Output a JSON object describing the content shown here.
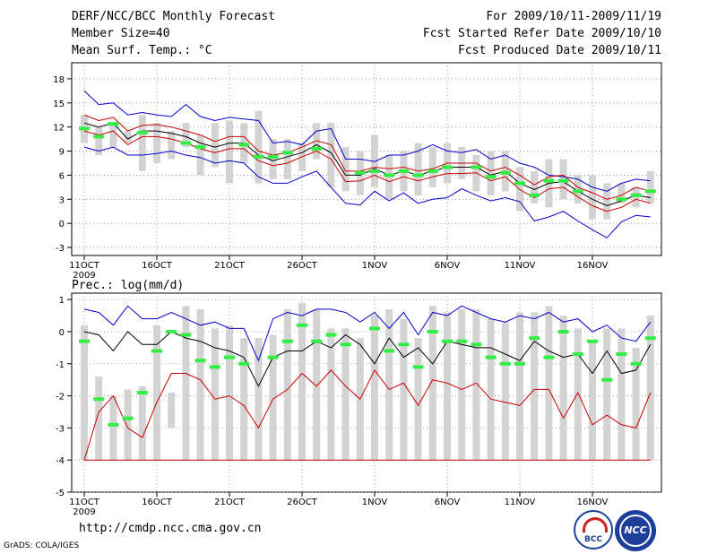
{
  "header": {
    "title": "DERF/NCC/BCC Monthly Forecast",
    "member_size": "Member Size=40",
    "variable": "Mean Surf. Temp.: °C",
    "period": "For 2009/10/11-2009/11/19",
    "start_date": "Fcst Started Refer Date 2009/10/10",
    "produced_date": "Fcst Produced Date 2009/10/11"
  },
  "footer": {
    "url": "http://cmdp.ncc.cma.gov.cn",
    "grads": "GrADS: COLA/IGES",
    "logo_bcc": "BCC",
    "logo_ncc": "NCC"
  },
  "colors": {
    "upper": "#0000cc",
    "mean": "#000000",
    "lower": "#cc0000",
    "box": "#d3d3d3",
    "obs": "#33ee44"
  },
  "chart_data": [
    {
      "type": "box-line",
      "title": "Mean Surf. Temp.: °C",
      "ylim": [
        -4,
        20
      ],
      "yticks": [
        -3,
        0,
        3,
        6,
        9,
        12,
        15,
        18
      ],
      "xlabels": [
        "11OCT",
        "16OCT",
        "21OCT",
        "26OCT",
        "1NOV",
        "6NOV",
        "11NOV",
        "16NOV"
      ],
      "xlabel_days": [
        0,
        5,
        10,
        15,
        20,
        25,
        30,
        35
      ],
      "year_label": "2009",
      "series": [
        {
          "name": "upper",
          "values": [
            16.5,
            14.8,
            15.0,
            13.5,
            13.8,
            13.5,
            13.3,
            14.8,
            13.3,
            12.8,
            13.2,
            13.0,
            12.8,
            10.0,
            10.2,
            9.8,
            11.5,
            11.8,
            8.0,
            8.0,
            7.7,
            8.5,
            8.5,
            9.0,
            9.8,
            9.0,
            8.8,
            9.2,
            8.0,
            8.5,
            7.5,
            7.0,
            6.0,
            5.8,
            5.5,
            4.5,
            4.0,
            5.0,
            5.5,
            5.3
          ]
        },
        {
          "name": "upper_sd",
          "values": [
            13.5,
            12.8,
            13.2,
            11.5,
            12.2,
            12.3,
            12.0,
            11.5,
            11.0,
            10.2,
            10.8,
            10.8,
            9.0,
            8.5,
            8.8,
            9.5,
            10.3,
            9.8,
            6.5,
            6.5,
            7.0,
            6.8,
            7.0,
            6.5,
            6.8,
            7.5,
            7.5,
            7.5,
            6.5,
            7.0,
            6.0,
            4.8,
            5.8,
            6.0,
            4.5,
            3.8,
            3.0,
            3.5,
            4.5,
            4.0
          ]
        },
        {
          "name": "mean",
          "values": [
            12.5,
            12.0,
            12.5,
            10.5,
            11.5,
            11.5,
            11.2,
            10.8,
            10.0,
            9.5,
            10.0,
            10.0,
            8.5,
            7.8,
            8.3,
            8.8,
            9.8,
            8.8,
            6.0,
            6.0,
            6.8,
            6.0,
            6.5,
            6.0,
            6.5,
            7.0,
            7.0,
            7.0,
            6.0,
            6.5,
            5.0,
            4.2,
            5.0,
            5.2,
            4.0,
            3.0,
            2.2,
            2.8,
            3.5,
            3.2
          ]
        },
        {
          "name": "lower_sd",
          "values": [
            11.5,
            11.0,
            11.5,
            9.8,
            10.8,
            10.8,
            10.5,
            10.0,
            9.3,
            8.8,
            9.3,
            9.3,
            7.8,
            7.2,
            7.5,
            8.3,
            9.0,
            8.0,
            5.2,
            5.3,
            6.0,
            5.2,
            5.8,
            5.3,
            5.8,
            6.2,
            6.2,
            6.3,
            5.3,
            5.8,
            4.2,
            3.2,
            4.3,
            4.5,
            3.3,
            2.2,
            1.5,
            2.0,
            3.0,
            2.5
          ]
        },
        {
          "name": "lower",
          "values": [
            9.5,
            9.0,
            9.5,
            8.5,
            8.5,
            8.7,
            9.0,
            8.5,
            8.2,
            7.5,
            7.8,
            7.5,
            5.8,
            5.0,
            5.0,
            5.8,
            6.5,
            4.5,
            2.5,
            2.3,
            4.0,
            2.8,
            3.8,
            2.5,
            3.0,
            3.2,
            4.3,
            3.5,
            2.8,
            3.2,
            2.7,
            0.3,
            0.8,
            1.5,
            0.3,
            -0.8,
            -1.8,
            0.2,
            1.0,
            0.8
          ]
        },
        {
          "name": "box_high",
          "values": [
            13.5,
            12.0,
            12.5,
            11.5,
            13.5,
            12.5,
            11.5,
            12.5,
            11.0,
            12.5,
            12.8,
            12.5,
            14.0,
            10.5,
            10.5,
            10.0,
            12.5,
            12.5,
            9.5,
            9.0,
            11.0,
            8.5,
            9.0,
            10.0,
            9.5,
            10.0,
            9.5,
            8.5,
            9.0,
            9.0,
            7.0,
            6.5,
            8.0,
            8.0,
            6.0,
            6.0,
            5.0,
            5.0,
            4.5,
            6.5
          ]
        },
        {
          "name": "box_low",
          "values": [
            10.0,
            8.5,
            9.5,
            10.0,
            6.5,
            7.5,
            8.0,
            9.5,
            6.0,
            7.0,
            5.0,
            7.5,
            5.0,
            5.5,
            5.5,
            6.5,
            8.0,
            4.5,
            4.0,
            3.5,
            4.5,
            3.0,
            4.0,
            3.5,
            4.5,
            5.0,
            5.5,
            4.0,
            3.5,
            4.0,
            1.5,
            2.5,
            2.0,
            3.0,
            2.5,
            0.5,
            0.5,
            2.5,
            2.0,
            2.5
          ]
        },
        {
          "name": "observed",
          "values": [
            11.8,
            10.8,
            12.4,
            null,
            11.3,
            null,
            null,
            10.0,
            9.5,
            null,
            null,
            9.8,
            8.3,
            8.3,
            8.8,
            null,
            9.3,
            null,
            null,
            6.3,
            6.5,
            6.0,
            6.5,
            6.0,
            6.5,
            7.0,
            null,
            7.0,
            5.8,
            6.3,
            5.0,
            3.5,
            5.3,
            5.3,
            4.0,
            null,
            null,
            3.0,
            3.5,
            4.0
          ]
        }
      ]
    },
    {
      "type": "box-line",
      "title": "Prec.: log(mm/d)",
      "ylim": [
        -5,
        1.2
      ],
      "yticks": [
        -5,
        -4,
        -3,
        -2,
        -1,
        0,
        1
      ],
      "xlabels": [
        "11OCT",
        "16OCT",
        "21OCT",
        "26OCT",
        "1NOV",
        "6NOV",
        "11NOV",
        "16NOV"
      ],
      "xlabel_days": [
        0,
        5,
        10,
        15,
        20,
        25,
        30,
        35
      ],
      "year_label": "2009",
      "series": [
        {
          "name": "upper",
          "values": [
            0.7,
            0.6,
            0.2,
            0.8,
            0.4,
            0.4,
            0.6,
            0.4,
            0.2,
            0.3,
            0.1,
            0.1,
            -0.9,
            0.4,
            0.6,
            0.5,
            0.7,
            0.7,
            0.6,
            0.3,
            0.6,
            0.1,
            0.6,
            -0.1,
            0.6,
            0.5,
            0.8,
            0.6,
            0.4,
            0.3,
            0.5,
            0.4,
            0.6,
            0.3,
            0.4,
            0.0,
            0.2,
            -0.2,
            -0.3,
            0.3
          ]
        },
        {
          "name": "mean",
          "values": [
            0.0,
            -0.1,
            -0.6,
            0.0,
            -0.4,
            -0.4,
            0.0,
            -0.2,
            -0.3,
            -0.5,
            -0.6,
            -0.8,
            -1.7,
            -0.8,
            -0.6,
            -0.6,
            -0.3,
            -0.5,
            -0.1,
            -0.4,
            -1.0,
            -0.2,
            -0.8,
            -0.5,
            -1.0,
            -0.3,
            -0.4,
            -0.5,
            -0.5,
            -0.7,
            -0.9,
            -0.3,
            -0.6,
            -0.8,
            -0.7,
            -1.3,
            -0.6,
            -1.3,
            -1.2,
            -0.4
          ]
        },
        {
          "name": "lower",
          "values": [
            -4.0,
            -2.5,
            -2.0,
            -3.0,
            -3.3,
            -2.2,
            -1.3,
            -1.3,
            -1.5,
            -2.1,
            -2.0,
            -2.3,
            -3.0,
            -2.1,
            -1.8,
            -1.3,
            -1.7,
            -1.2,
            -1.7,
            -2.1,
            -1.2,
            -1.8,
            -1.6,
            -2.3,
            -1.5,
            -1.6,
            -1.8,
            -1.6,
            -2.1,
            -2.2,
            -2.3,
            -1.8,
            -1.8,
            -2.7,
            -1.9,
            -2.9,
            -2.6,
            -2.9,
            -3.0,
            -1.9
          ]
        },
        {
          "name": "floor",
          "values": [
            -4.0,
            -4.0,
            -4.0,
            -4.0,
            -4.0,
            -4.0,
            -4.0,
            -4.0,
            -4.0,
            -4.0,
            -4.0,
            -4.0,
            -4.0,
            -4.0,
            -4.0,
            -4.0,
            -4.0,
            -4.0,
            -4.0,
            -4.0,
            -4.0,
            -4.0,
            -4.0,
            -4.0,
            -4.0,
            -4.0,
            -4.0,
            -4.0,
            -4.0,
            -4.0,
            -4.0,
            -4.0,
            -4.0,
            -4.0,
            -4.0,
            -4.0,
            -4.0,
            -4.0,
            -4.0,
            -4.0
          ]
        },
        {
          "name": "box_high",
          "values": [
            0.2,
            -1.4,
            -2.0,
            -1.8,
            -1.7,
            0.2,
            -1.9,
            0.8,
            0.7,
            0.1,
            0.2,
            -0.2,
            -0.2,
            -0.1,
            0.7,
            0.9,
            0.7,
            0.1,
            0.1,
            -0.2,
            0.5,
            0.7,
            0.4,
            -0.2,
            0.8,
            0.6,
            0.7,
            0.7,
            0.4,
            0.3,
            0.6,
            0.6,
            0.8,
            0.5,
            0.1,
            -0.3,
            0.1,
            0.1,
            -0.5,
            0.5
          ]
        },
        {
          "name": "box_low",
          "values": [
            -4.0,
            -4.0,
            -4.0,
            -4.0,
            -4.0,
            -4.0,
            -3.0,
            -4.0,
            -4.0,
            -4.0,
            -4.0,
            -4.0,
            -4.0,
            -4.0,
            -4.0,
            -4.0,
            -4.0,
            -4.0,
            -4.0,
            -4.0,
            -4.0,
            -4.0,
            -4.0,
            -4.0,
            -4.0,
            -4.0,
            -4.0,
            -4.0,
            -4.0,
            -4.0,
            -4.0,
            -4.0,
            -4.0,
            -4.0,
            -4.0,
            -4.0,
            -4.0,
            -4.0,
            -4.0,
            -4.0
          ]
        },
        {
          "name": "observed",
          "values": [
            -0.3,
            -2.1,
            -2.9,
            -2.7,
            -1.9,
            -0.6,
            0.0,
            -0.1,
            -0.9,
            -1.1,
            -0.8,
            -1.0,
            null,
            -0.8,
            -0.3,
            0.2,
            -0.3,
            -0.1,
            -0.4,
            null,
            0.1,
            -0.6,
            -0.4,
            -1.1,
            0.0,
            -0.3,
            -0.3,
            -0.4,
            -0.8,
            -1.0,
            -1.0,
            -0.2,
            -0.8,
            0.0,
            -0.7,
            -0.3,
            -1.5,
            -0.7,
            -1.0,
            -0.2
          ]
        }
      ]
    }
  ]
}
